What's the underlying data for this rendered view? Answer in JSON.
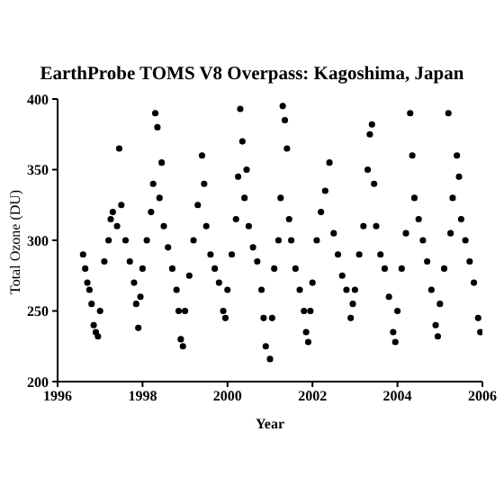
{
  "chart_data": {
    "type": "scatter",
    "title": "EarthProbe TOMS V8 Overpass: Kagoshima, Japan",
    "xlabel": "Year",
    "ylabel": "Total Ozone (DU)",
    "xlim": [
      1996,
      2006
    ],
    "xticks": [
      1996,
      1998,
      2000,
      2002,
      2004,
      2006
    ],
    "ylim": [
      200,
      400
    ],
    "yticks": [
      200,
      250,
      300,
      350,
      400
    ],
    "grid": false,
    "marker": "circle",
    "series": [
      {
        "color": "#000000",
        "x": [
          1996.6,
          1996.65,
          1996.7,
          1996.75,
          1996.8,
          1996.85,
          1996.9,
          1996.95,
          1997.0,
          1997.1,
          1997.2,
          1997.25,
          1997.3,
          1997.4,
          1997.45,
          1997.5,
          1997.6,
          1997.7,
          1997.8,
          1997.85,
          1997.9,
          1997.95,
          1998.0,
          1998.1,
          1998.2,
          1998.25,
          1998.3,
          1998.35,
          1998.4,
          1998.45,
          1998.5,
          1998.6,
          1998.7,
          1998.8,
          1998.85,
          1998.9,
          1998.95,
          1999.0,
          1999.1,
          1999.2,
          1999.3,
          1999.4,
          1999.45,
          1999.5,
          1999.6,
          1999.7,
          1999.8,
          1999.9,
          1999.95,
          2000.0,
          2000.1,
          2000.2,
          2000.25,
          2000.3,
          2000.35,
          2000.4,
          2000.45,
          2000.5,
          2000.6,
          2000.7,
          2000.8,
          2000.85,
          2000.9,
          2001.0,
          2001.05,
          2001.1,
          2001.2,
          2001.25,
          2001.3,
          2001.35,
          2001.4,
          2001.45,
          2001.5,
          2001.6,
          2001.7,
          2001.8,
          2001.85,
          2001.9,
          2001.95,
          2002.0,
          2002.1,
          2002.2,
          2002.3,
          2002.4,
          2002.5,
          2002.6,
          2002.7,
          2002.8,
          2002.9,
          2002.95,
          2003.0,
          2003.1,
          2003.2,
          2003.3,
          2003.35,
          2003.4,
          2003.45,
          2003.5,
          2003.6,
          2003.7,
          2003.8,
          2003.9,
          2003.95,
          2004.0,
          2004.1,
          2004.2,
          2004.3,
          2004.35,
          2004.4,
          2004.5,
          2004.6,
          2004.7,
          2004.8,
          2004.9,
          2004.95,
          2005.0,
          2005.1,
          2005.2,
          2005.25,
          2005.3,
          2005.4,
          2005.45,
          2005.5,
          2005.6,
          2005.7,
          2005.8,
          2005.9,
          2005.95
        ],
        "values": [
          290,
          280,
          270,
          265,
          255,
          240,
          235,
          232,
          250,
          285,
          300,
          315,
          320,
          310,
          365,
          325,
          300,
          285,
          270,
          255,
          238,
          260,
          280,
          300,
          320,
          340,
          390,
          380,
          330,
          355,
          310,
          295,
          280,
          265,
          250,
          230,
          225,
          250,
          275,
          300,
          325,
          360,
          340,
          310,
          290,
          280,
          270,
          250,
          245,
          265,
          290,
          315,
          345,
          393,
          370,
          330,
          350,
          310,
          295,
          285,
          265,
          245,
          225,
          216,
          245,
          280,
          300,
          330,
          395,
          385,
          365,
          315,
          300,
          280,
          265,
          250,
          235,
          228,
          250,
          270,
          300,
          320,
          335,
          355,
          305,
          290,
          275,
          265,
          245,
          255,
          265,
          290,
          310,
          350,
          375,
          382,
          340,
          310,
          290,
          280,
          260,
          235,
          228,
          250,
          280,
          305,
          390,
          360,
          330,
          315,
          300,
          285,
          265,
          240,
          232,
          255,
          280,
          390,
          305,
          330,
          360,
          345,
          315,
          300,
          285,
          270,
          245,
          235
        ]
      }
    ]
  }
}
